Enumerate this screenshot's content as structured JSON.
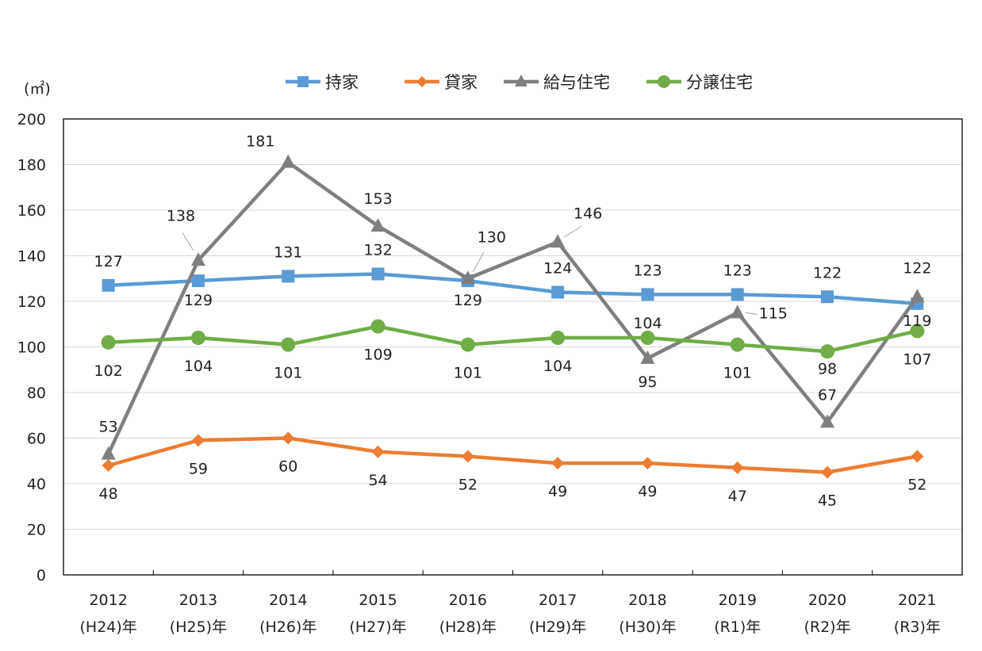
{
  "chart_data": {
    "type": "line",
    "y_unit": "(㎡)",
    "ylim": [
      0,
      200
    ],
    "y_ticks": [
      0,
      20,
      40,
      60,
      80,
      100,
      120,
      140,
      160,
      180,
      200
    ],
    "grid": true,
    "legend_position": "top-center",
    "categories": [
      {
        "year": "2012",
        "era": "(H24)年"
      },
      {
        "year": "2013",
        "era": "(H25)年"
      },
      {
        "year": "2014",
        "era": "(H26)年"
      },
      {
        "year": "2015",
        "era": "(H27)年"
      },
      {
        "year": "2016",
        "era": "(H28)年"
      },
      {
        "year": "2017",
        "era": "(H29)年"
      },
      {
        "year": "2018",
        "era": "(H30)年"
      },
      {
        "year": "2019",
        "era": "(R1)年"
      },
      {
        "year": "2020",
        "era": "(R2)年"
      },
      {
        "year": "2021",
        "era": "(R3)年"
      }
    ],
    "series": [
      {
        "name": "持家",
        "color": "#5b9bd5",
        "marker": "square",
        "values": [
          127,
          129,
          131,
          132,
          129,
          124,
          123,
          123,
          122,
          119
        ]
      },
      {
        "name": "貸家",
        "color": "#ed7d31",
        "marker": "diamond",
        "values": [
          48,
          59,
          60,
          54,
          52,
          49,
          49,
          47,
          45,
          52
        ]
      },
      {
        "name": "給与住宅",
        "color": "#7f7f7f",
        "marker": "triangle",
        "values": [
          53,
          138,
          181,
          153,
          130,
          146,
          95,
          115,
          67,
          122
        ]
      },
      {
        "name": "分譲住宅",
        "color": "#70ad47",
        "marker": "circle",
        "values": [
          102,
          104,
          101,
          109,
          101,
          104,
          104,
          101,
          98,
          107
        ]
      }
    ]
  }
}
